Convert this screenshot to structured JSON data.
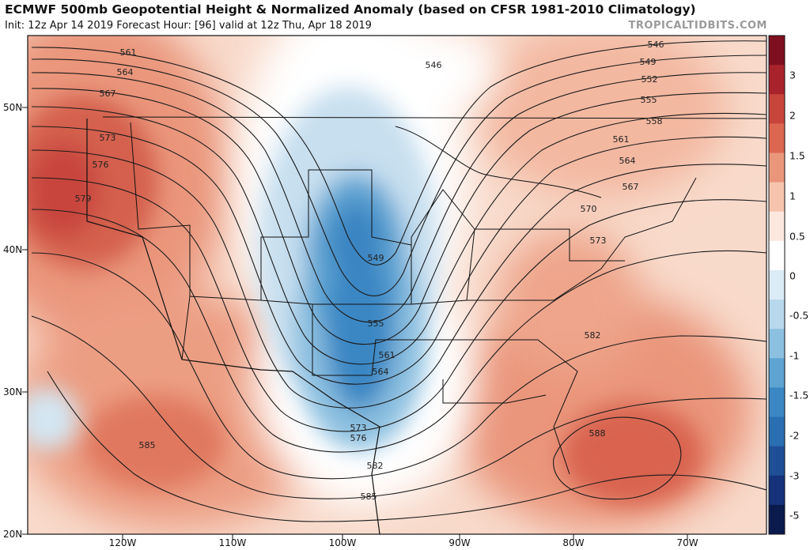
{
  "header": {
    "title": "ECMWF 500mb Geopotential Height & Normalized Anomaly (based on CFSR 1981-2010 Climatology)",
    "subtitle": "Init: 12z Apr 14 2019   Forecast Hour: [96]   valid at 12z Thu, Apr 18 2019",
    "credit": "TROPICALTIDBITS.COM"
  },
  "map": {
    "lat_labels": [
      "50N",
      "40N",
      "30N",
      "20N"
    ],
    "lon_labels": [
      "120W",
      "110W",
      "100W",
      "90W",
      "80W",
      "70W"
    ],
    "contour_labels": [
      "546",
      "546",
      "549",
      "552",
      "555",
      "558",
      "561",
      "561",
      "564",
      "564",
      "567",
      "567",
      "570",
      "573",
      "573",
      "576",
      "579",
      "549",
      "555",
      "561",
      "564",
      "573",
      "576",
      "582",
      "582",
      "585",
      "585",
      "588"
    ],
    "colors": {
      "ocean_base": "#f9d9c8",
      "strong_positive": "#c8453c",
      "positive": "#ea967b",
      "weak_positive": "#f8d7c7",
      "neutral": "#ffffff",
      "weak_negative": "#d3e6f2",
      "negative": "#7fb7da",
      "strong_negative": "#2f79bb",
      "contour": "#1a1a1a",
      "border": "#111111"
    }
  },
  "colorbar": {
    "labels": [
      "3",
      "2",
      "1.5",
      "1",
      "0.5",
      "0",
      "-0.5",
      "-1",
      "-1.5",
      "-2",
      "-3",
      "-5"
    ],
    "colors": [
      "#7e0f1f",
      "#a8232c",
      "#c8453c",
      "#dc6650",
      "#ea967b",
      "#f6c4ad",
      "#fce8de",
      "#ffffff",
      "#dcecf6",
      "#b8d8ec",
      "#8cc0e0",
      "#5ea4d3",
      "#3b87c4",
      "#2a6fb2",
      "#1f4f97",
      "#15327a",
      "#0b1a4d"
    ]
  }
}
